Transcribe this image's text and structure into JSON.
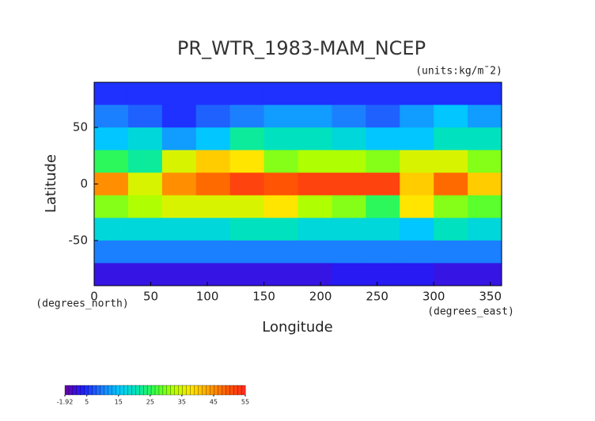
{
  "chart_data": {
    "type": "heatmap",
    "title": "PR_WTR_1983-MAM_NCEP",
    "units": "(units:kg/m¯2)",
    "x_label": "Longitude",
    "y_label": "Latitude",
    "x_unit_label": "(degrees_east)",
    "y_unit_label": "(degrees_north)",
    "x": [
      15,
      45,
      75,
      105,
      135,
      165,
      195,
      225,
      255,
      285,
      315,
      345
    ],
    "y": [
      80,
      60,
      40,
      20,
      0,
      -20,
      -40,
      -60,
      -80
    ],
    "z": [
      [
        5,
        5,
        5,
        5,
        5,
        5,
        5,
        5,
        5,
        5,
        5,
        5
      ],
      [
        10,
        8,
        5,
        8,
        10,
        12,
        12,
        10,
        8,
        12,
        15,
        12
      ],
      [
        15,
        18,
        12,
        15,
        22,
        20,
        20,
        18,
        15,
        15,
        20,
        20
      ],
      [
        25,
        22,
        35,
        40,
        38,
        30,
        32,
        32,
        30,
        35,
        35,
        30
      ],
      [
        45,
        35,
        45,
        48,
        52,
        50,
        52,
        52,
        52,
        40,
        48,
        40
      ],
      [
        30,
        32,
        35,
        35,
        35,
        38,
        32,
        30,
        25,
        38,
        30,
        28
      ],
      [
        18,
        18,
        18,
        18,
        20,
        20,
        18,
        18,
        18,
        15,
        20,
        18
      ],
      [
        10,
        10,
        10,
        10,
        10,
        10,
        10,
        10,
        10,
        10,
        10,
        10
      ],
      [
        2,
        2,
        2,
        2,
        2,
        2,
        2,
        3,
        3,
        3,
        2,
        2
      ]
    ],
    "xlim": [
      0,
      360
    ],
    "ylim": [
      -90,
      90
    ],
    "xticks": [
      0,
      50,
      100,
      150,
      200,
      250,
      300,
      350
    ],
    "yticks": [
      -50,
      0,
      50
    ],
    "clim": [
      -1.92,
      55
    ],
    "colorscale": [
      "#6a00a8",
      "#1e1eff",
      "#1e78ff",
      "#00c8ff",
      "#00e6b4",
      "#3cff3c",
      "#b4ff00",
      "#ffe600",
      "#ffa000",
      "#ff5a00",
      "#ff2a1e"
    ],
    "colorbar_ticks": [
      -1.92,
      5,
      15,
      25,
      35,
      45,
      55
    ]
  }
}
